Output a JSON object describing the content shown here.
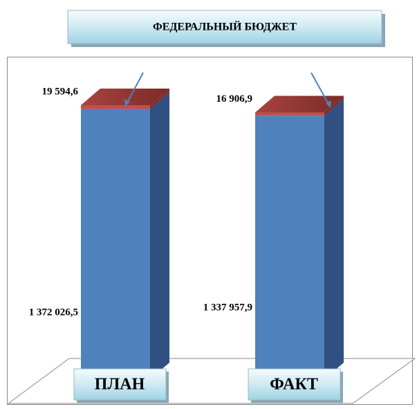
{
  "chart_data": {
    "type": "bar",
    "stacked": true,
    "three_d": true,
    "title": "ФЕДЕРАЛЬНЫЙ БЮДЖЕТ",
    "categories": [
      "ПЛАН",
      "ФАКТ"
    ],
    "series": [
      {
        "color": "#4f81bd",
        "side_color": "#2f5080",
        "values": [
          1372026.5,
          1337957.9
        ],
        "value_labels": [
          "1 372 026,5",
          "1 337 957,9"
        ]
      },
      {
        "color": "#c0504d",
        "side_color": "#7f2e2c",
        "top_color": "#953735",
        "values": [
          19594.6,
          16906.9
        ],
        "value_labels": [
          "19 594,6",
          "16 906,9"
        ]
      }
    ]
  }
}
